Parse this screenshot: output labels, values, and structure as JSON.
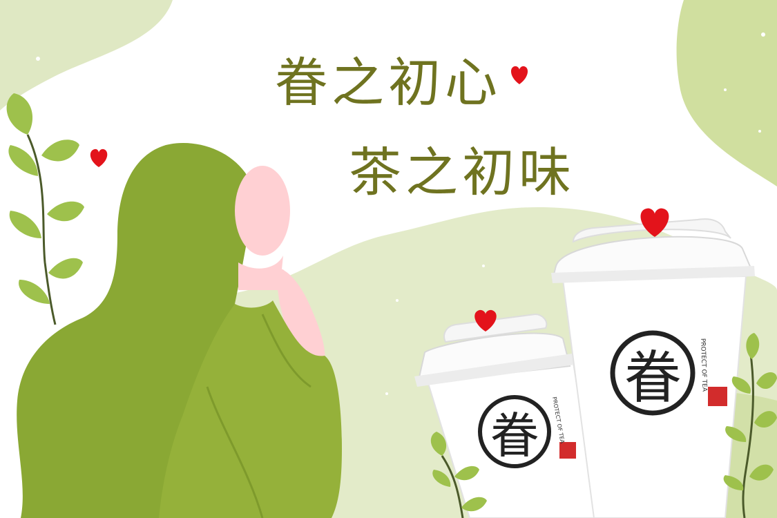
{
  "headline": {
    "line1": "眷之初心",
    "line2": "茶之初味"
  },
  "brand": {
    "logo_char": "眷",
    "side_text": "PROTECT OF TEA"
  },
  "colors": {
    "title": "#6f7320",
    "bg_light_green": "#e3ebc9",
    "bg_mid_green": "#d2e0a8",
    "hair_green": "#8aa834",
    "sweater_green": "#95b13a",
    "skin_pink": "#ffd0d3",
    "heart_red": "#e3131b",
    "cup_white": "#ffffff",
    "leaf_green": "#9ec14c"
  },
  "icons": [
    "heart-icon",
    "leaf-icon",
    "brand-logo-icon",
    "seal-stamp-icon"
  ]
}
